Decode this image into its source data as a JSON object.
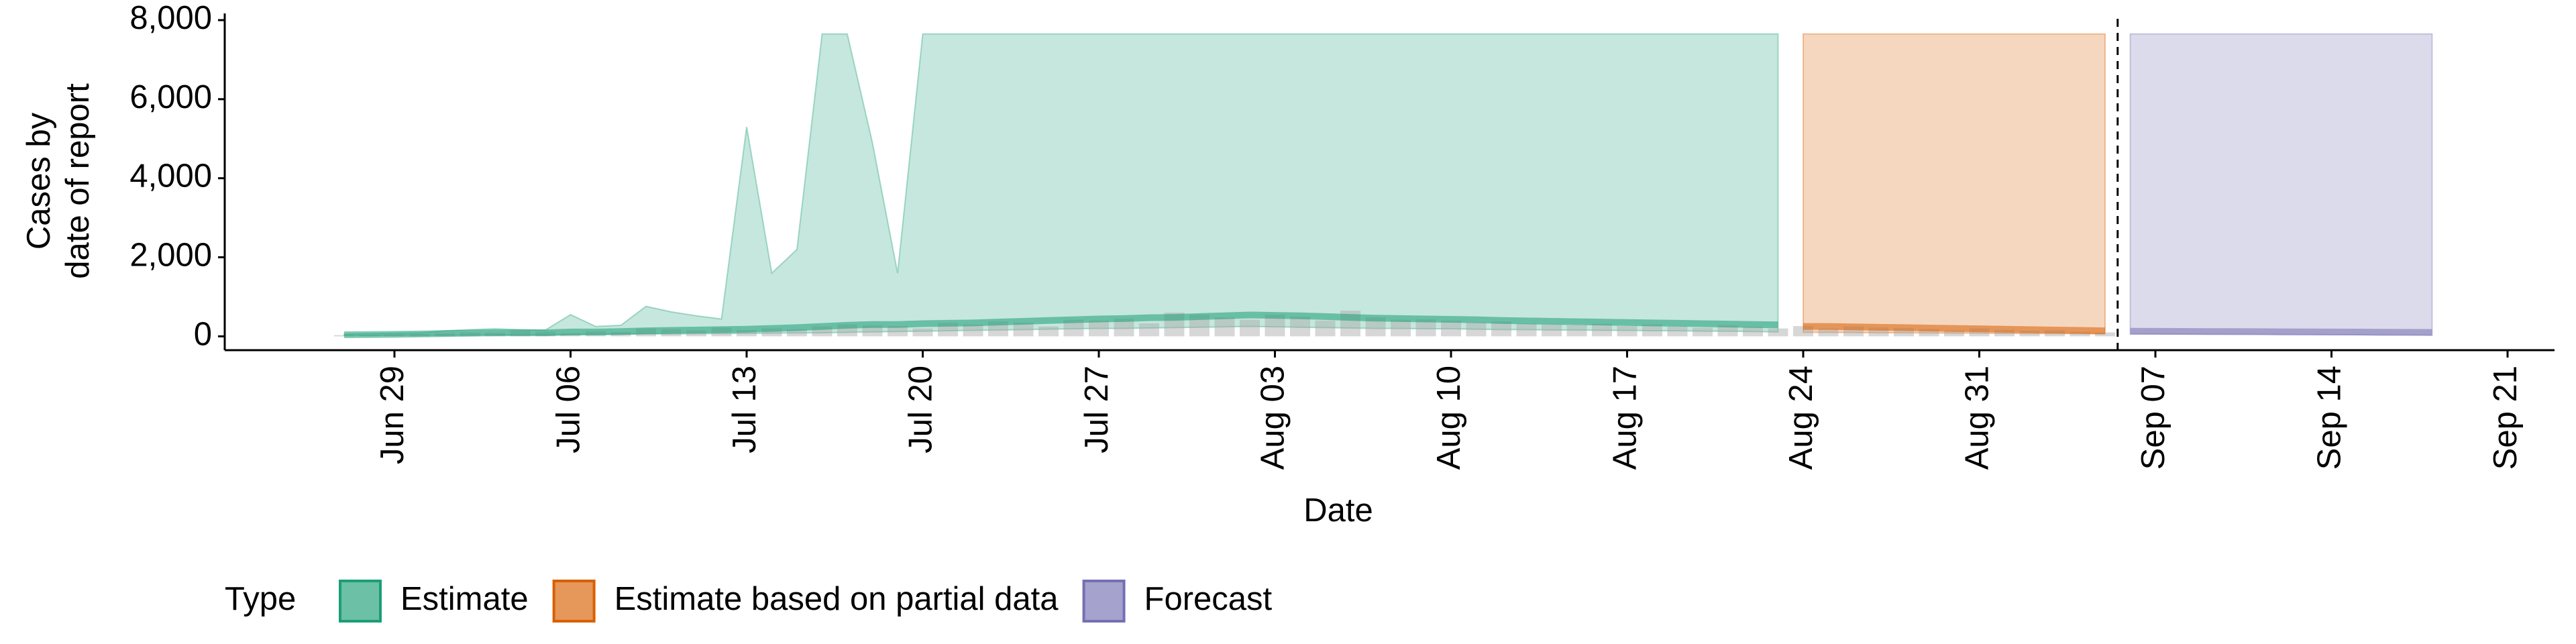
{
  "chart_data": {
    "type": "area",
    "ylabel": [
      "Cases by",
      "date of report"
    ],
    "xlabel": "Date",
    "legend_title": "Type",
    "legend": "bottom-left",
    "categories": [
      null,
      null,
      null,
      "Jun 29",
      null,
      null,
      null,
      null,
      null,
      null,
      "Jul 06",
      null,
      null,
      null,
      null,
      null,
      null,
      "Jul 13",
      null,
      null,
      null,
      null,
      null,
      null,
      "Jul 20",
      null,
      null,
      null,
      null,
      null,
      null,
      "Jul 27",
      null,
      null,
      null,
      null,
      null,
      null,
      "Aug 03",
      null,
      null,
      null,
      null,
      null,
      null,
      "Aug 10",
      null,
      null,
      null,
      null,
      null,
      null,
      "Aug 17",
      null,
      null,
      null,
      null,
      null,
      null,
      "Aug 24",
      null,
      null,
      null,
      null,
      null,
      null,
      "Aug 31",
      null,
      null,
      null,
      null,
      null,
      null,
      "Sep 07",
      null,
      null,
      null,
      null,
      null,
      null,
      "Sep 14",
      null,
      null,
      null,
      null,
      null,
      null,
      "Sep 21",
      null
    ],
    "ylim": [
      -350,
      8000
    ],
    "yticks": [
      0,
      {
        "value": 2000,
        "label": "2,000"
      },
      {
        "value": 4000,
        "label": "4,000"
      },
      {
        "value": 6000,
        "label": "6,000"
      },
      {
        "value": 8000,
        "label": "8,000"
      }
    ],
    "bars": {
      "color": "#a6a6a6",
      "values": [
        null,
        30,
        40,
        50,
        60,
        80,
        100,
        90,
        150,
        120,
        80,
        130,
        110,
        200,
        180,
        150,
        220,
        160,
        200,
        180,
        250,
        300,
        280,
        260,
        200,
        340,
        300,
        380,
        350,
        250,
        420,
        400,
        450,
        330,
        600,
        550,
        480,
        420,
        550,
        500,
        400,
        650,
        480,
        420,
        430,
        400,
        350,
        380,
        320,
        300,
        280,
        320,
        260,
        300,
        250,
        220,
        280,
        240,
        200,
        260,
        200,
        250,
        220,
        210,
        180,
        150,
        200,
        160,
        140,
        150,
        120,
        100,
        null,
        null,
        null,
        null,
        null,
        null,
        null,
        null,
        null,
        null,
        null,
        null,
        null,
        null,
        null,
        null,
        null
      ]
    },
    "series": [
      {
        "name": "Estimate",
        "color": "#1b9e77",
        "upper": [
          null,
          60,
          70,
          80,
          90,
          140,
          170,
          190,
          170,
          160,
          550,
          250,
          280,
          760,
          620,
          520,
          440,
          5300,
          1600,
          2200,
          7650,
          7650,
          4900,
          1600,
          7650,
          7650,
          7650,
          7650,
          7650,
          7650,
          7650,
          7650,
          7650,
          7650,
          7650,
          7650,
          7650,
          7650,
          7650,
          7650,
          7650,
          7650,
          7650,
          7650,
          7650,
          7650,
          7650,
          7650,
          7650,
          7650,
          7650,
          7650,
          7650,
          7650,
          7650,
          7650,
          7650,
          7650,
          7650,
          null,
          null,
          null,
          null,
          null,
          null,
          null,
          null,
          null,
          null,
          null,
          null,
          null,
          null,
          null,
          null,
          null,
          null,
          null,
          null,
          null,
          null,
          null,
          null,
          null,
          null,
          null,
          null,
          null,
          null
        ],
        "lower": [
          null,
          20,
          20,
          25,
          30,
          30,
          35,
          40,
          40,
          40,
          45,
          50,
          55,
          60,
          60,
          65,
          70,
          75,
          80,
          85,
          90,
          100,
          110,
          120,
          130,
          140,
          150,
          160,
          170,
          180,
          190,
          200,
          200,
          210,
          220,
          230,
          240,
          250,
          240,
          230,
          220,
          210,
          200,
          200,
          190,
          190,
          180,
          170,
          170,
          160,
          160,
          150,
          150,
          140,
          140,
          130,
          130,
          120,
          110,
          null,
          null,
          null,
          null,
          null,
          null,
          null,
          null,
          null,
          null,
          null,
          null,
          null,
          null,
          null,
          null,
          null,
          null,
          null,
          null,
          null,
          null,
          null,
          null,
          null,
          null,
          null,
          null,
          null,
          null
        ],
        "values": [
          null,
          40,
          45,
          50,
          60,
          70,
          80,
          90,
          90,
          90,
          110,
          110,
          120,
          140,
          150,
          160,
          170,
          180,
          200,
          220,
          250,
          280,
          300,
          300,
          320,
          330,
          340,
          360,
          380,
          400,
          420,
          440,
          450,
          470,
          480,
          500,
          520,
          540,
          530,
          520,
          500,
          480,
          460,
          450,
          440,
          430,
          420,
          400,
          390,
          380,
          370,
          360,
          350,
          340,
          330,
          320,
          310,
          300,
          290,
          null,
          null,
          null,
          null,
          null,
          null,
          null,
          null,
          null,
          null,
          null,
          null,
          null,
          null,
          null,
          null,
          null,
          null,
          null,
          null,
          null,
          null,
          null,
          null,
          null,
          null,
          null,
          null,
          null,
          null
        ]
      },
      {
        "name": "Estimate based on partial data",
        "color": "#d95f02",
        "upper": [
          null,
          null,
          null,
          null,
          null,
          null,
          null,
          null,
          null,
          null,
          null,
          null,
          null,
          null,
          null,
          null,
          null,
          null,
          null,
          null,
          null,
          null,
          null,
          null,
          null,
          null,
          null,
          null,
          null,
          null,
          null,
          null,
          null,
          null,
          null,
          null,
          null,
          null,
          null,
          null,
          null,
          null,
          null,
          null,
          null,
          null,
          null,
          null,
          null,
          null,
          null,
          null,
          null,
          null,
          null,
          null,
          null,
          null,
          null,
          7650,
          7650,
          7650,
          7650,
          7650,
          7650,
          7650,
          7650,
          7650,
          7650,
          7650,
          7650,
          7650,
          null,
          null,
          null,
          null,
          null,
          null,
          null,
          null,
          null,
          null,
          null,
          null,
          null,
          null,
          null,
          null,
          null
        ],
        "lower": [
          null,
          null,
          null,
          null,
          null,
          null,
          null,
          null,
          null,
          null,
          null,
          null,
          null,
          null,
          null,
          null,
          null,
          null,
          null,
          null,
          null,
          null,
          null,
          null,
          null,
          null,
          null,
          null,
          null,
          null,
          null,
          null,
          null,
          null,
          null,
          null,
          null,
          null,
          null,
          null,
          null,
          null,
          null,
          null,
          null,
          null,
          null,
          null,
          null,
          null,
          null,
          null,
          null,
          null,
          null,
          null,
          null,
          null,
          null,
          100,
          100,
          95,
          90,
          90,
          85,
          80,
          80,
          75,
          70,
          70,
          65,
          60,
          null,
          null,
          null,
          null,
          null,
          null,
          null,
          null,
          null,
          null,
          null,
          null,
          null,
          null,
          null,
          null,
          null
        ],
        "values": [
          null,
          null,
          null,
          null,
          null,
          null,
          null,
          null,
          null,
          null,
          null,
          null,
          null,
          null,
          null,
          null,
          null,
          null,
          null,
          null,
          null,
          null,
          null,
          null,
          null,
          null,
          null,
          null,
          null,
          null,
          null,
          null,
          null,
          null,
          null,
          null,
          null,
          null,
          null,
          null,
          null,
          null,
          null,
          null,
          null,
          null,
          null,
          null,
          null,
          null,
          null,
          null,
          null,
          null,
          null,
          null,
          null,
          null,
          null,
          250,
          250,
          240,
          230,
          220,
          210,
          200,
          190,
          180,
          170,
          160,
          150,
          140,
          null,
          null,
          null,
          null,
          null,
          null,
          null,
          null,
          null,
          null,
          null,
          null,
          null,
          null,
          null,
          null,
          null
        ]
      },
      {
        "name": "Forecast",
        "color": "#7570b3",
        "upper": [
          null,
          null,
          null,
          null,
          null,
          null,
          null,
          null,
          null,
          null,
          null,
          null,
          null,
          null,
          null,
          null,
          null,
          null,
          null,
          null,
          null,
          null,
          null,
          null,
          null,
          null,
          null,
          null,
          null,
          null,
          null,
          null,
          null,
          null,
          null,
          null,
          null,
          null,
          null,
          null,
          null,
          null,
          null,
          null,
          null,
          null,
          null,
          null,
          null,
          null,
          null,
          null,
          null,
          null,
          null,
          null,
          null,
          null,
          null,
          null,
          null,
          null,
          null,
          null,
          null,
          null,
          null,
          null,
          null,
          null,
          null,
          null,
          7650,
          7650,
          7650,
          7650,
          7650,
          7650,
          7650,
          7650,
          7650,
          7650,
          7650,
          7650,
          7650,
          null,
          null,
          null,
          null
        ],
        "lower": [
          null,
          null,
          null,
          null,
          null,
          null,
          null,
          null,
          null,
          null,
          null,
          null,
          null,
          null,
          null,
          null,
          null,
          null,
          null,
          null,
          null,
          null,
          null,
          null,
          null,
          null,
          null,
          null,
          null,
          null,
          null,
          null,
          null,
          null,
          null,
          null,
          null,
          null,
          null,
          null,
          null,
          null,
          null,
          null,
          null,
          null,
          null,
          null,
          null,
          null,
          null,
          null,
          null,
          null,
          null,
          null,
          null,
          null,
          null,
          null,
          null,
          null,
          null,
          null,
          null,
          null,
          null,
          null,
          null,
          null,
          null,
          null,
          60,
          60,
          55,
          55,
          50,
          50,
          45,
          45,
          40,
          40,
          35,
          35,
          30,
          null,
          null,
          null,
          null
        ],
        "values": [
          null,
          null,
          null,
          null,
          null,
          null,
          null,
          null,
          null,
          null,
          null,
          null,
          null,
          null,
          null,
          null,
          null,
          null,
          null,
          null,
          null,
          null,
          null,
          null,
          null,
          null,
          null,
          null,
          null,
          null,
          null,
          null,
          null,
          null,
          null,
          null,
          null,
          null,
          null,
          null,
          null,
          null,
          null,
          null,
          null,
          null,
          null,
          null,
          null,
          null,
          null,
          null,
          null,
          null,
          null,
          null,
          null,
          null,
          null,
          null,
          null,
          null,
          null,
          null,
          null,
          null,
          null,
          null,
          null,
          null,
          null,
          null,
          130,
          128,
          125,
          122,
          120,
          118,
          115,
          112,
          110,
          108,
          105,
          102,
          100,
          null,
          null,
          null,
          null
        ]
      }
    ]
  }
}
